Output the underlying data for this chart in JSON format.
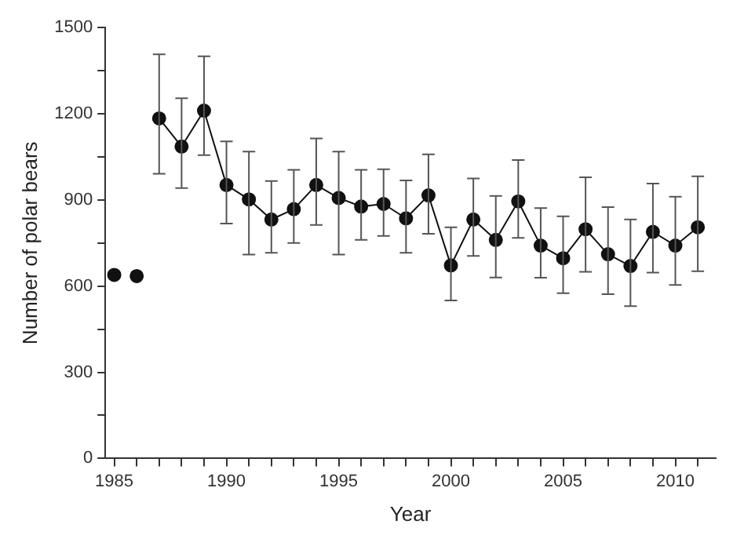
{
  "chart_data": {
    "type": "line",
    "xlabel": "Year",
    "ylabel": "Number of polar bears",
    "xlim": [
      1984.6,
      2011.8
    ],
    "xticks": [
      1985,
      {
        "value": 1986,
        "label": null
      },
      {
        "value": 1987,
        "label": null
      },
      {
        "value": 1988,
        "label": null
      },
      {
        "value": 1989,
        "label": null
      },
      1990,
      {
        "value": 1991,
        "label": null
      },
      {
        "value": 1992,
        "label": null
      },
      {
        "value": 1993,
        "label": null
      },
      {
        "value": 1994,
        "label": null
      },
      1995,
      {
        "value": 1996,
        "label": null
      },
      {
        "value": 1997,
        "label": null
      },
      {
        "value": 1998,
        "label": null
      },
      {
        "value": 1999,
        "label": null
      },
      2000,
      {
        "value": 2001,
        "label": null
      },
      {
        "value": 2002,
        "label": null
      },
      {
        "value": 2003,
        "label": null
      },
      {
        "value": 2004,
        "label": null
      },
      2005,
      {
        "value": 2006,
        "label": null
      },
      {
        "value": 2007,
        "label": null
      },
      {
        "value": 2008,
        "label": null
      },
      {
        "value": 2009,
        "label": null
      },
      2010,
      {
        "value": 2011,
        "label": null
      }
    ],
    "ylim": [
      0,
      1500
    ],
    "yticks": [
      0,
      {
        "value": 150,
        "label": null
      },
      300,
      {
        "value": 450,
        "label": null
      },
      600,
      {
        "value": 750,
        "label": null
      },
      900,
      {
        "value": 1050,
        "label": null
      },
      1200,
      {
        "value": 1350,
        "label": null
      },
      1500
    ],
    "grid": false,
    "legend": false,
    "marker": "circle",
    "line_style": "solid",
    "series": [
      {
        "type": "scatter",
        "color": "#111111",
        "x": [
          1985,
          1986
        ],
        "values": [
          639,
          635
        ]
      },
      {
        "color": "#111111",
        "x": [
          1987,
          1988,
          1989,
          1990,
          1991,
          1992,
          1993,
          1994,
          1995,
          1996,
          1997,
          1998,
          1999,
          2000,
          2001,
          2002,
          2003,
          2004,
          2005,
          2006,
          2007,
          2008,
          2009,
          2010,
          2011
        ],
        "values": [
          1184,
          1086,
          1211,
          952,
          902,
          832,
          868,
          952,
          907,
          877,
          886,
          836,
          916,
          672,
          832,
          761,
          895,
          741,
          697,
          798,
          711,
          670,
          789,
          741,
          805
        ],
        "errors": [
          [
            991,
            1407
          ],
          [
            941,
            1254
          ],
          [
            1056,
            1400
          ],
          [
            818,
            1104
          ],
          [
            710,
            1068
          ],
          [
            716,
            966
          ],
          [
            750,
            1005
          ],
          [
            813,
            1114
          ],
          [
            710,
            1068
          ],
          [
            761,
            1005
          ],
          [
            775,
            1007
          ],
          [
            716,
            968
          ],
          [
            782,
            1059
          ],
          [
            550,
            805
          ],
          [
            705,
            975
          ],
          [
            630,
            914
          ],
          [
            768,
            1039
          ],
          [
            629,
            872
          ],
          [
            575,
            843
          ],
          [
            650,
            979
          ],
          [
            572,
            875
          ],
          [
            530,
            832
          ],
          [
            647,
            957
          ],
          [
            604,
            911
          ],
          [
            652,
            982
          ]
        ]
      }
    ]
  }
}
